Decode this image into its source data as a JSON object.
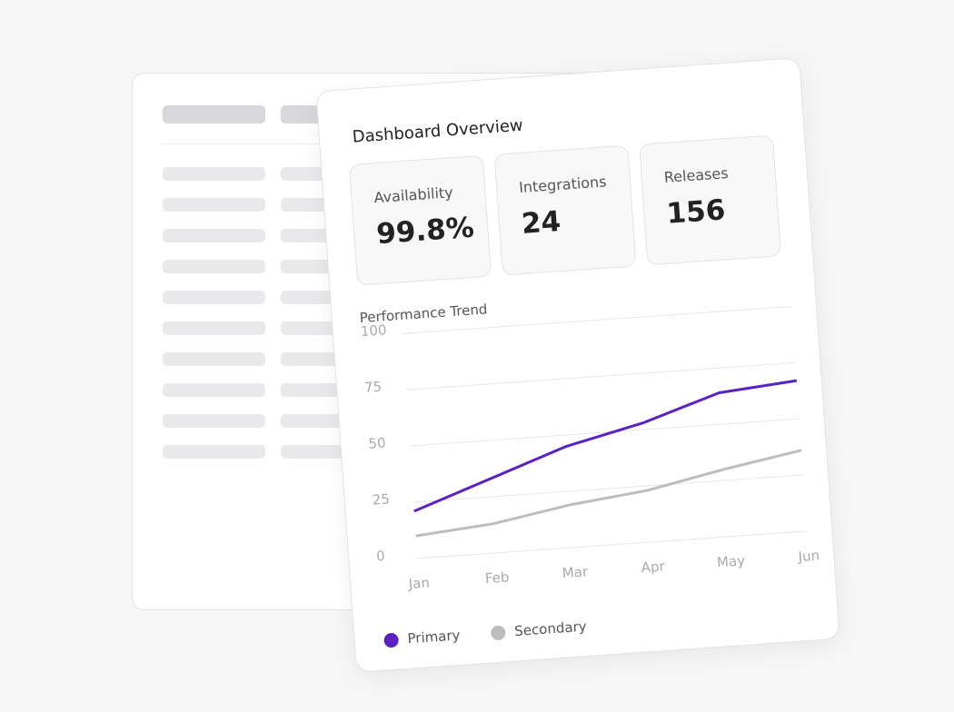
{
  "title": "Dashboard Overview",
  "stats": [
    {
      "label": "Availability",
      "value": "99.8%"
    },
    {
      "label": "Integrations",
      "value": "24"
    },
    {
      "label": "Releases",
      "value": "156"
    }
  ],
  "chart_data": {
    "type": "line",
    "title": "Performance Trend",
    "categories": [
      "Jan",
      "Feb",
      "Mar",
      "Apr",
      "May",
      "Jun"
    ],
    "series": [
      {
        "name": "Primary",
        "color": "#5b21c4",
        "values": [
          21,
          33,
          45,
          53,
          64,
          67
        ]
      },
      {
        "name": "Secondary",
        "color": "#bdbdbd",
        "values": [
          10,
          13,
          19,
          23,
          30,
          36
        ]
      }
    ],
    "ylim": [
      0,
      100
    ],
    "yticks": [
      0,
      25,
      50,
      75,
      100
    ],
    "grid": true
  }
}
